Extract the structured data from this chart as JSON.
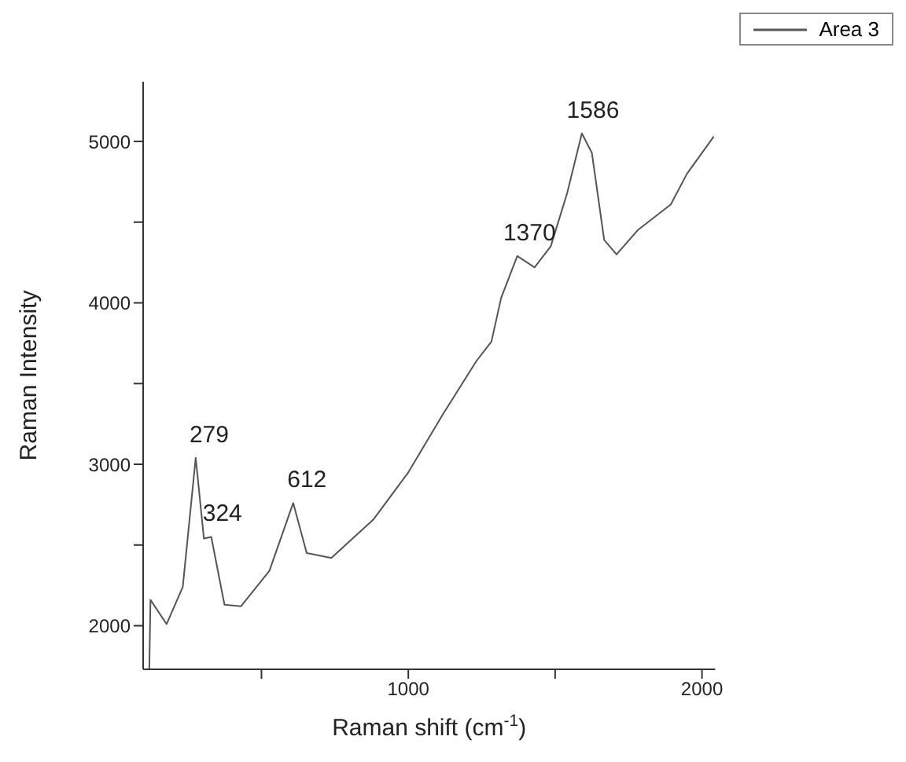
{
  "chart_data": {
    "type": "line",
    "xlabel": "Raman shift (cm$^{-1}$)",
    "ylabel": "Raman Intensity",
    "x": [
      118,
      122,
      177,
      232,
      276,
      304,
      329,
      374,
      430,
      527,
      608,
      654,
      738,
      882,
      1000,
      1118,
      1232,
      1283,
      1316,
      1371,
      1430,
      1485,
      1541,
      1591,
      1625,
      1667,
      1709,
      1781,
      1894,
      1949,
      2040
    ],
    "series": [
      {
        "name": "Area 3",
        "color": "#555555",
        "values": [
          1730,
          2160,
          2010,
          2240,
          3040,
          2540,
          2550,
          2130,
          2120,
          2340,
          2760,
          2450,
          2420,
          2660,
          2950,
          3310,
          3640,
          3760,
          4030,
          4290,
          4220,
          4350,
          4680,
          5050,
          4930,
          4390,
          4300,
          4450,
          4610,
          4800,
          5030
        ]
      }
    ],
    "xlim": [
      97,
      2045
    ],
    "xticks": [
      {
        "value": 500,
        "label": null
      },
      1000,
      {
        "value": 1500,
        "label": null
      },
      2000
    ],
    "ylim": [
      1730,
      5370
    ],
    "yticks": [
      2000,
      {
        "value": 2500,
        "label": null
      },
      3000,
      {
        "value": 3500,
        "label": null
      },
      4000,
      {
        "value": 4500,
        "label": null
      },
      5000
    ],
    "grid": false,
    "legend": "top right",
    "marker": "none",
    "line_style": "solid",
    "annotations": [
      {
        "text": "279",
        "x": 279,
        "y": 3040
      },
      {
        "text": "324",
        "x": 324,
        "y": 2550
      },
      {
        "text": "612",
        "x": 612,
        "y": 2760
      },
      {
        "text": "1370",
        "x": 1370,
        "y": 4290
      },
      {
        "text": "1586",
        "x": 1586,
        "y": 5050
      }
    ]
  }
}
